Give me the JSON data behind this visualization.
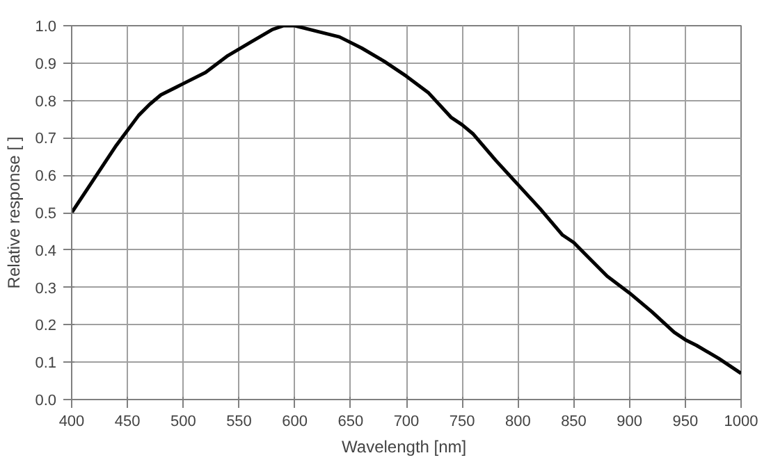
{
  "chart_data": {
    "type": "line",
    "xlabel": "Wavelength  [nm]",
    "ylabel": "Relative response [ ]",
    "x": [
      400,
      420,
      440,
      460,
      470,
      480,
      500,
      520,
      540,
      560,
      580,
      590,
      600,
      620,
      640,
      660,
      680,
      700,
      720,
      740,
      750,
      760,
      780,
      800,
      820,
      840,
      850,
      860,
      880,
      900,
      920,
      940,
      950,
      960,
      980,
      1000
    ],
    "series": [
      {
        "color": "#000000",
        "values": [
          0.5,
          0.59,
          0.68,
          0.76,
          0.79,
          0.815,
          0.845,
          0.875,
          0.92,
          0.955,
          0.99,
          1.0,
          1.0,
          0.985,
          0.97,
          0.94,
          0.905,
          0.865,
          0.82,
          0.755,
          0.735,
          0.71,
          0.64,
          0.575,
          0.51,
          0.44,
          0.42,
          0.39,
          0.33,
          0.285,
          0.235,
          0.18,
          0.16,
          0.145,
          0.11,
          0.07
        ]
      }
    ],
    "xlim": [
      400,
      1000
    ],
    "ylim": [
      0,
      1
    ],
    "xticks": [
      400,
      450,
      500,
      550,
      600,
      650,
      700,
      750,
      800,
      850,
      900,
      950,
      1000
    ],
    "yticks": [
      {
        "value": 0,
        "label": "0.0"
      },
      0.1,
      0.2,
      0.3,
      0.4,
      0.5,
      0.6,
      0.7,
      0.8,
      0.9,
      {
        "value": 1,
        "label": "1.0"
      }
    ],
    "grid": true,
    "marker": "none",
    "line_style": "solid"
  }
}
